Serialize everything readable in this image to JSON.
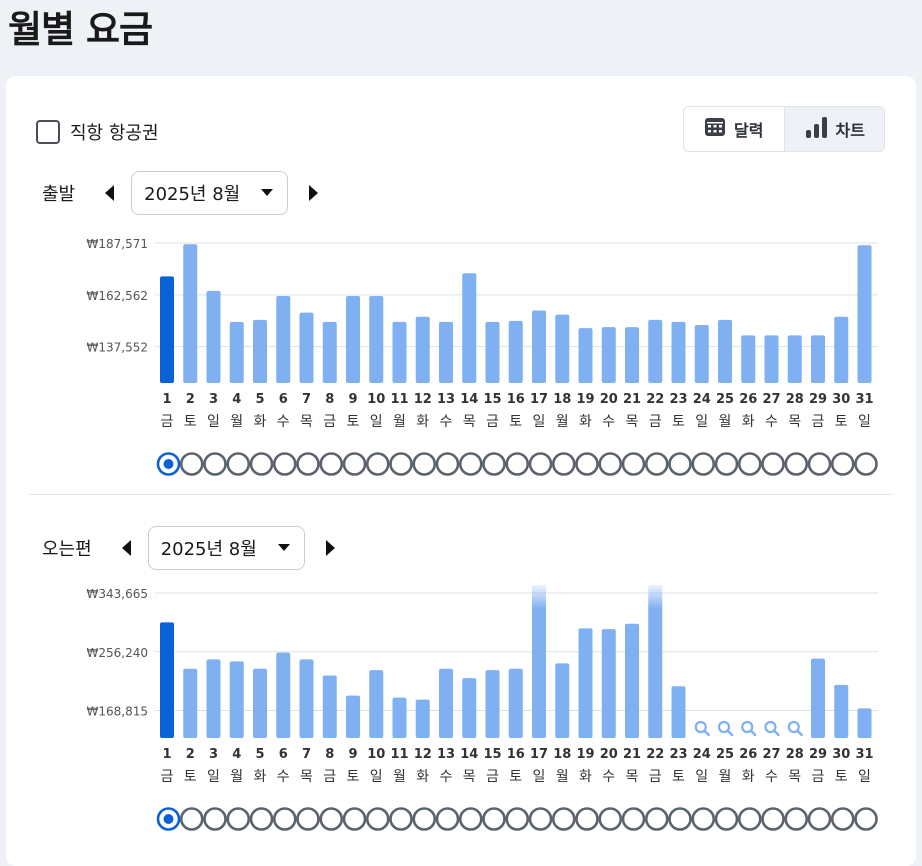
{
  "page": {
    "title": "월별 요금"
  },
  "filters": {
    "direct_flight_label": "직항 항공권",
    "direct_flight_checked": false
  },
  "view_toggle": {
    "calendar_label": "달력",
    "chart_label": "차트",
    "active": "chart"
  },
  "departure": {
    "label": "출발",
    "month": "2025년 8월"
  },
  "return": {
    "label": "오는편",
    "month": "2025년 8월"
  },
  "colors": {
    "bar": "#7eb0f2",
    "bar_selected": "#0a62d8",
    "radio": "#5d636c",
    "grid": "#dde1e7"
  },
  "chart_data": [
    {
      "type": "bar",
      "name": "departure",
      "categories": [
        "1",
        "2",
        "3",
        "4",
        "5",
        "6",
        "7",
        "8",
        "9",
        "10",
        "11",
        "12",
        "13",
        "14",
        "15",
        "16",
        "17",
        "18",
        "19",
        "20",
        "21",
        "22",
        "23",
        "24",
        "25",
        "26",
        "27",
        "28",
        "29",
        "30",
        "31"
      ],
      "weekdays": [
        "금",
        "토",
        "일",
        "월",
        "화",
        "수",
        "목",
        "금",
        "토",
        "일",
        "월",
        "화",
        "수",
        "목",
        "금",
        "토",
        "일",
        "월",
        "화",
        "수",
        "목",
        "금",
        "토",
        "일",
        "월",
        "화",
        "수",
        "목",
        "금",
        "토",
        "일"
      ],
      "values": [
        171500,
        187000,
        164500,
        149500,
        150500,
        162000,
        154000,
        149500,
        162000,
        162000,
        149500,
        152000,
        149500,
        173000,
        149500,
        150000,
        155000,
        153000,
        146500,
        147000,
        147000,
        150500,
        149500,
        148000,
        150500,
        143000,
        143000,
        143000,
        143000,
        152000,
        186500
      ],
      "yticks": [
        137552,
        162562,
        187571
      ],
      "ytick_labels": [
        "₩137,552",
        "₩162,562",
        "₩187,571"
      ],
      "ylim": [
        120000,
        190000
      ],
      "selected_index": 0,
      "no_data_days": [],
      "capped_days": []
    },
    {
      "type": "bar",
      "name": "return",
      "categories": [
        "1",
        "2",
        "3",
        "4",
        "5",
        "6",
        "7",
        "8",
        "9",
        "10",
        "11",
        "12",
        "13",
        "14",
        "15",
        "16",
        "17",
        "18",
        "19",
        "20",
        "21",
        "22",
        "23",
        "24",
        "25",
        "26",
        "27",
        "28",
        "29",
        "30",
        "31"
      ],
      "weekdays": [
        "금",
        "토",
        "일",
        "월",
        "화",
        "수",
        "목",
        "금",
        "토",
        "일",
        "월",
        "화",
        "수",
        "목",
        "금",
        "토",
        "일",
        "월",
        "화",
        "수",
        "목",
        "금",
        "토",
        "일",
        "월",
        "화",
        "수",
        "목",
        "금",
        "토",
        "일"
      ],
      "values": [
        300000,
        231000,
        245000,
        242000,
        231000,
        255000,
        245000,
        221000,
        191000,
        229000,
        188000,
        185000,
        231000,
        217000,
        229000,
        231000,
        380000,
        239000,
        291000,
        290000,
        298000,
        380000,
        205000,
        null,
        null,
        null,
        null,
        null,
        246000,
        207000,
        172000
      ],
      "yticks": [
        168815,
        256240,
        343665
      ],
      "ytick_labels": [
        "₩168,815",
        "₩256,240",
        "₩343,665"
      ],
      "ylim": [
        128000,
        343665
      ],
      "selected_index": 0,
      "no_data_days": [
        "24",
        "25",
        "26",
        "27",
        "28"
      ],
      "capped_days": [
        "17",
        "22"
      ]
    }
  ]
}
